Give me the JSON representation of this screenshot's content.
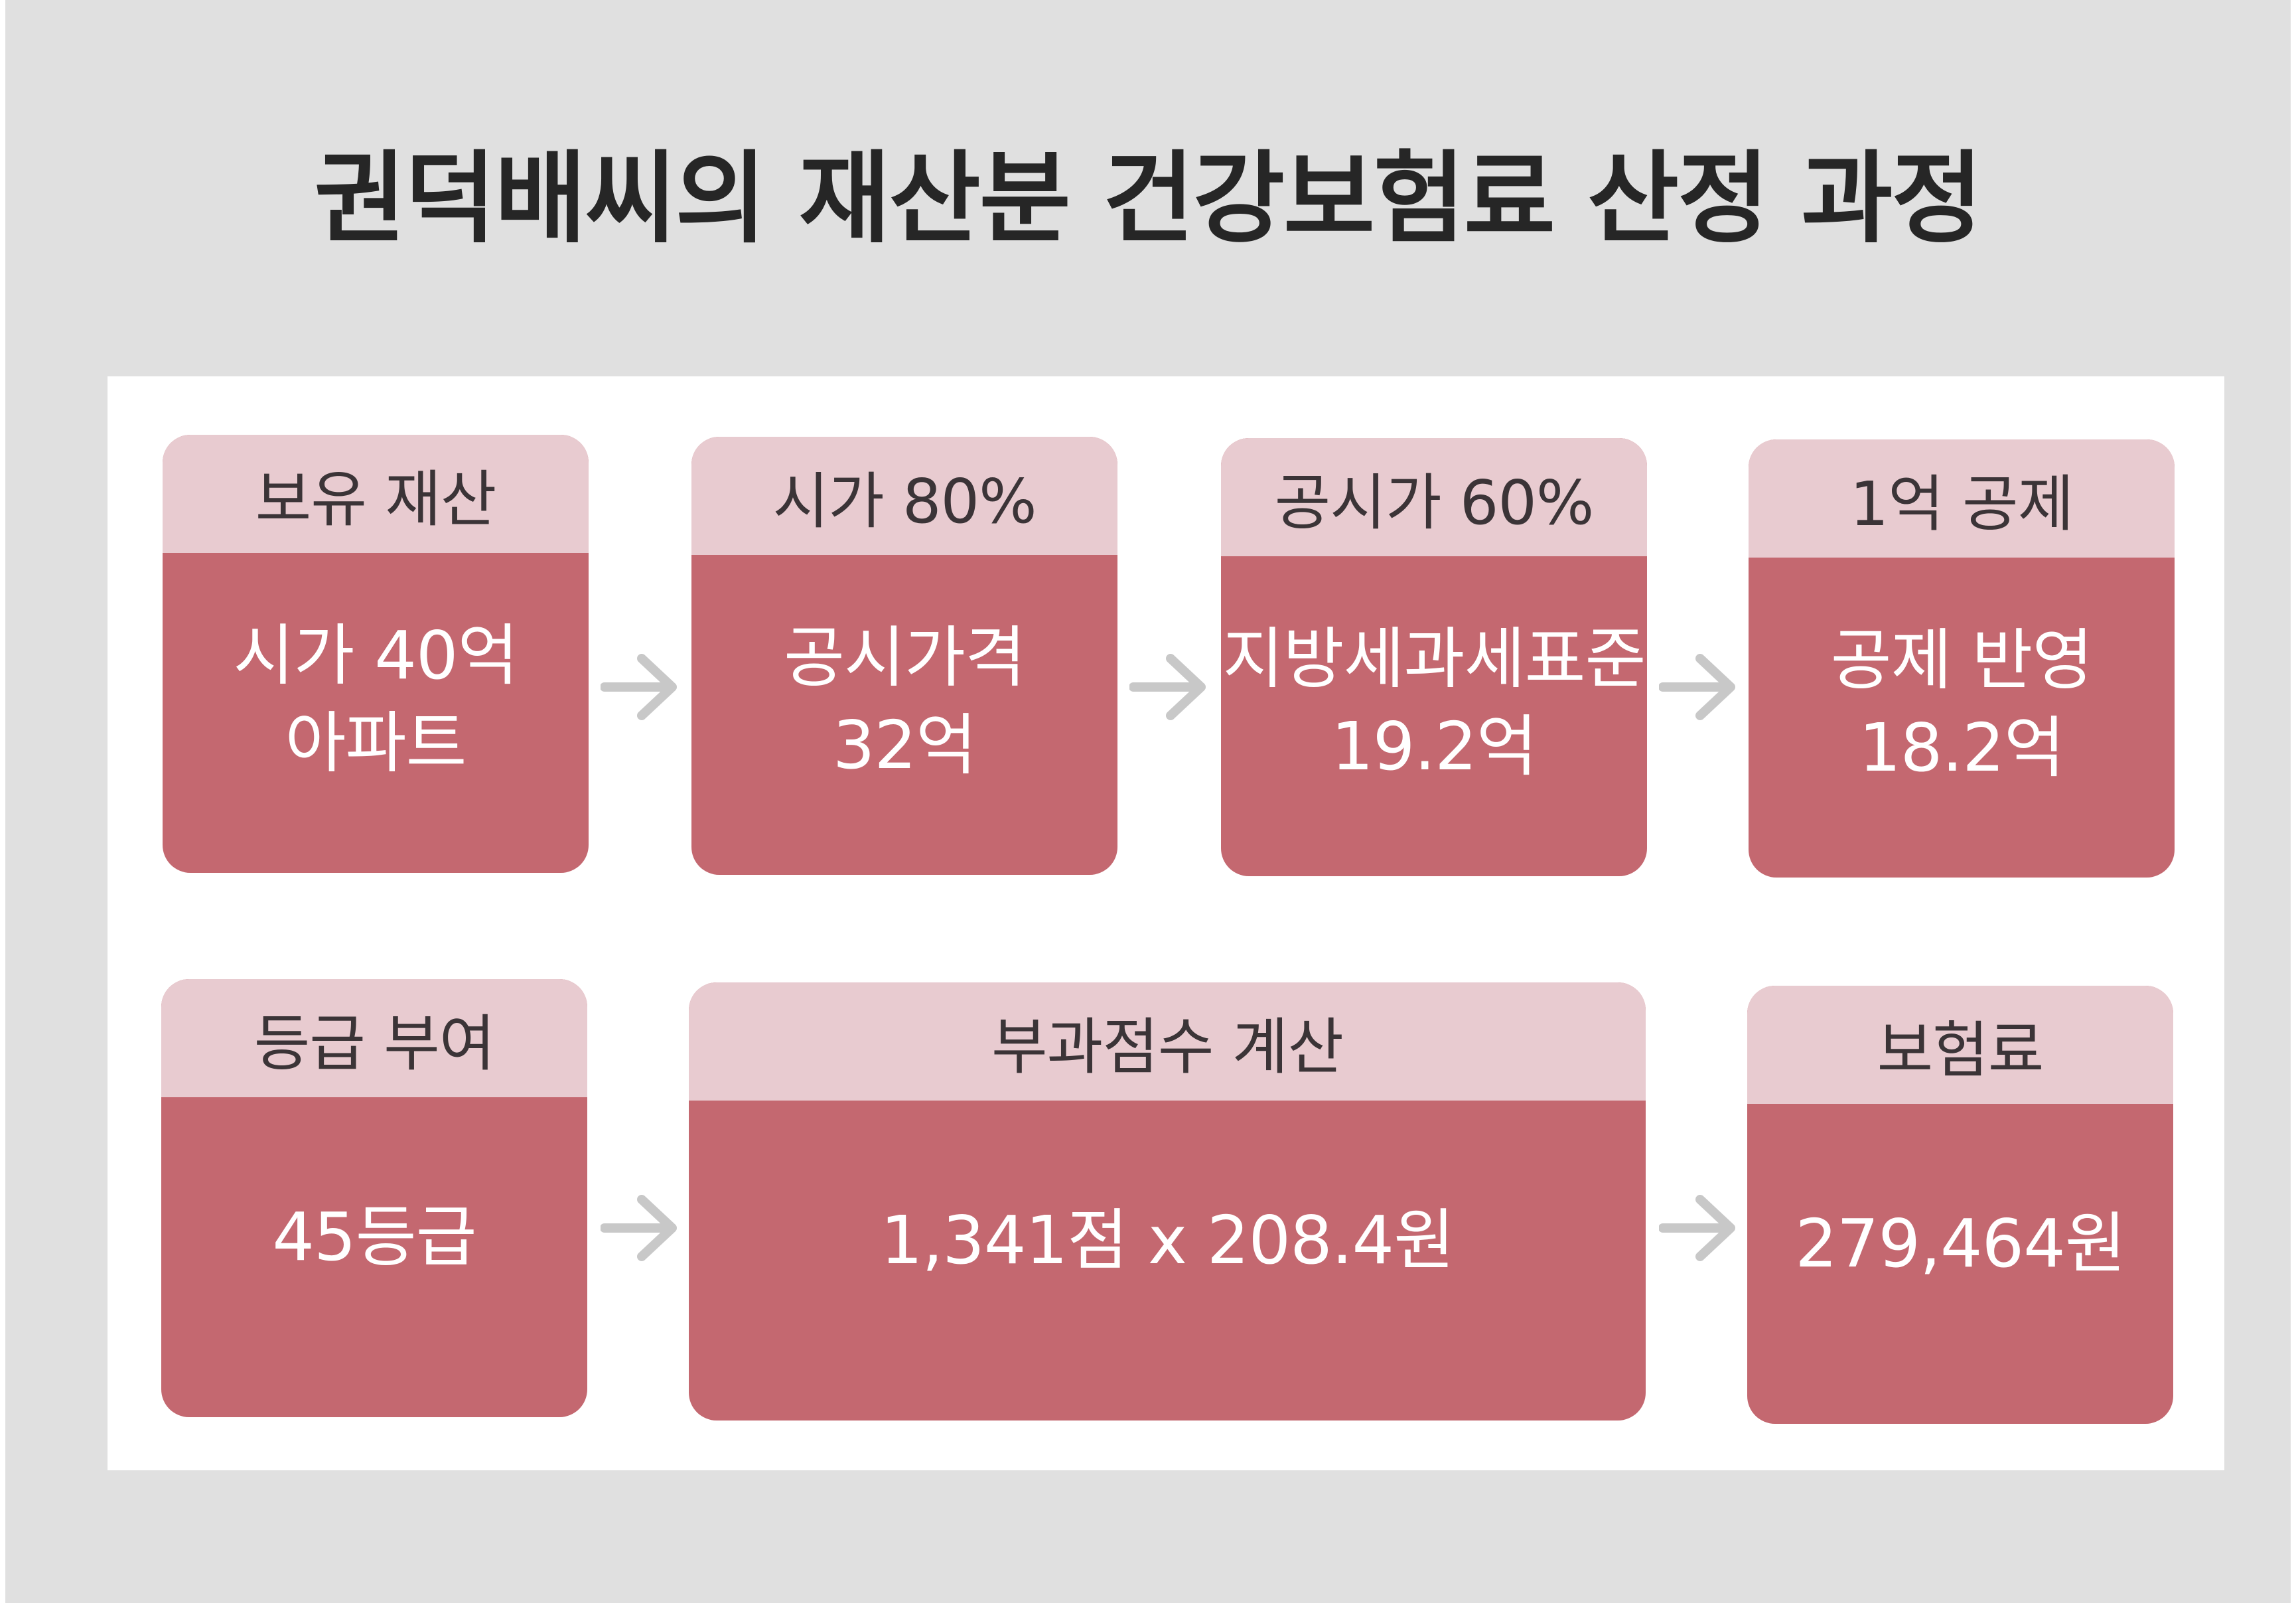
{
  "title": "권덕배씨의 재산분 건강보험료 산정 과정",
  "colors": {
    "background": "#e0e0e0",
    "panel": "#ffffff",
    "card_header": "#e8cbd0",
    "card_body": "#c46870",
    "arrow": "#c8c8c8",
    "title_text": "#262626"
  },
  "row1": [
    {
      "header": "보유 재산",
      "lines": [
        "시가 40억",
        "아파트"
      ]
    },
    {
      "header": "시가 80%",
      "lines": [
        "공시가격",
        "32억"
      ]
    },
    {
      "header": "공시가 60%",
      "lines": [
        "지방세과세표준",
        "19.2억"
      ]
    },
    {
      "header": "1억 공제",
      "lines": [
        "공제 반영",
        "18.2억"
      ]
    }
  ],
  "row2": [
    {
      "header": "등급 부여",
      "lines": [
        "45등급"
      ]
    },
    {
      "header": "부과점수 계산",
      "lines": [
        "1,341점 x 208.4원"
      ]
    },
    {
      "header": "보험료",
      "lines": [
        "279,464원"
      ]
    }
  ],
  "arrow_icon": "arrow-right-icon"
}
